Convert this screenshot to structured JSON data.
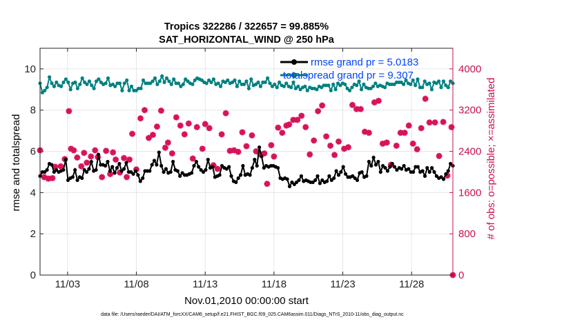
{
  "colors": {
    "rmse": "#000000",
    "spread": "#008080",
    "obs": "#d8135b",
    "legend_text": "#0044ff",
    "right_axis": "#c8104f"
  },
  "chart_data": {
    "type": "line",
    "title": [
      "Tropics 322286 / 322657 = 99.885%",
      "SAT_HORIZONTAL_WIND @ 250 hPa"
    ],
    "xlabel": "Nov.01,2010 00:00:00 start",
    "ylabel": "rmse and totalspread",
    "y2label": "# of obs: o=possible; ×=assimilated",
    "footnote": "data file: /Users/raeder/DAI/ATM_forcXX/CAM6_setup/f.e21.FHIST_BGC.f09_025.CAM6assim.011/Diags_NTrS_2010-11/obs_diag_output.nc",
    "xlim": [
      1.0,
      31.0
    ],
    "ylim": [
      0,
      11
    ],
    "y2lim": [
      0,
      4400
    ],
    "grid": true,
    "x_ticks": [
      3,
      8,
      13,
      18,
      23,
      28
    ],
    "x_tick_labels": [
      "11/03",
      "11/08",
      "11/13",
      "11/18",
      "11/23",
      "11/28"
    ],
    "y_ticks": [
      0,
      2,
      4,
      6,
      8,
      10
    ],
    "y_tick_labels": [
      "0",
      "2",
      "4",
      "6",
      "8",
      "10"
    ],
    "y2_ticks": [
      0,
      800,
      1600,
      2400,
      3200,
      4000
    ],
    "y2_tick_labels": [
      "0",
      "800",
      "1600",
      "2400",
      "3200",
      "4000"
    ],
    "series": [
      {
        "name": "rmse grand pr = 5.0183",
        "axis": "left",
        "values": [
          4.8,
          5.0,
          5.0,
          5.1,
          5.4,
          5.35,
          5.0,
          5.1,
          5.0,
          5.05,
          5.1,
          5.6,
          4.6,
          4.7,
          4.75,
          5.1,
          4.6,
          4.75,
          4.7,
          5.1,
          5.0,
          5.15,
          5.5,
          5.05,
          5.1,
          5.85,
          5.35,
          5.35,
          5.3,
          5.5,
          5.05,
          5.25,
          4.95,
          5.2,
          5.4,
          5.05,
          5.15,
          5.45,
          5.0,
          5.0,
          4.9,
          5.05,
          4.85,
          4.55,
          4.7,
          5.05,
          5.05,
          5.05,
          5.35,
          5.55,
          5.35,
          5.95,
          5.3,
          5.0,
          5.15,
          4.95,
          5.0,
          5.5,
          5.1,
          5.05,
          4.8,
          4.95,
          4.85,
          4.85,
          4.9,
          4.95,
          5.3,
          5.5,
          5.25,
          5.1,
          5.0,
          5.1,
          5.6,
          5.2,
          5.25,
          4.75,
          4.8,
          4.85,
          5.3,
          5.2,
          5.15,
          5.25,
          4.8,
          4.55,
          4.5,
          4.7,
          4.85,
          5.3,
          4.85,
          4.9,
          4.85,
          5.2,
          5.6,
          5.3,
          6.2,
          5.75,
          5.2,
          5.3,
          5.25,
          5.3,
          5.3,
          5.25,
          5.2,
          4.7,
          4.65,
          4.7,
          4.65,
          4.3,
          4.5,
          4.4,
          4.5,
          4.6,
          4.8,
          4.55,
          4.6,
          4.55,
          4.5,
          4.5,
          4.6,
          4.8,
          4.45,
          4.6,
          4.5,
          4.55,
          4.8,
          4.6,
          4.7,
          5.05,
          4.85,
          5.0,
          5.25,
          4.9,
          4.75,
          4.75,
          4.8,
          4.7,
          4.6,
          4.95,
          5.0,
          4.75,
          4.8,
          5.5,
          5.3,
          5.7,
          5.35,
          5.5,
          5.0,
          5.3,
          5.2,
          5.05,
          5.25,
          5.4,
          5.25,
          5.1,
          5.2,
          5.15,
          5.3,
          5.1,
          5.15,
          5.0,
          5.0,
          5.25,
          5.25,
          5.0,
          5.05,
          4.8,
          5.2,
          5.0,
          5.2,
          5.0,
          4.8,
          4.7,
          4.75,
          4.65,
          4.9,
          5.05,
          5.4,
          5.3
        ]
      },
      {
        "name": "totalspread grand pr = 9.307",
        "axis": "left",
        "values": [
          9.3,
          8.85,
          8.95,
          9.1,
          9.6,
          9.3,
          9.15,
          9.35,
          9.2,
          9.15,
          9.35,
          9.5,
          9.35,
          9.0,
          9.3,
          9.35,
          9.05,
          9.25,
          9.55,
          9.35,
          9.25,
          9.4,
          9.2,
          9.05,
          9.4,
          9.5,
          9.35,
          9.25,
          9.3,
          9.55,
          9.2,
          9.25,
          9.15,
          9.3,
          9.3,
          8.95,
          9.3,
          9.45,
          8.95,
          9.15,
          8.95,
          8.95,
          9.05,
          9.05,
          9.45,
          9.3,
          9.3,
          9.3,
          9.4,
          9.55,
          9.25,
          9.4,
          9.65,
          9.35,
          9.55,
          9.4,
          9.25,
          9.5,
          9.3,
          9.3,
          9.15,
          9.25,
          9.5,
          9.4,
          9.3,
          9.25,
          9.45,
          9.55,
          9.5,
          9.45,
          9.35,
          9.3,
          9.45,
          9.35,
          9.5,
          9.25,
          9.3,
          9.15,
          9.4,
          9.35,
          9.45,
          9.3,
          9.35,
          9.45,
          9.15,
          9.4,
          9.25,
          9.25,
          9.4,
          9.05,
          9.5,
          9.2,
          9.25,
          9.35,
          9.15,
          9.35,
          9.35,
          9.55,
          9.3,
          9.15,
          9.25,
          9.1,
          9.35,
          9.2,
          9.15,
          9.3,
          9.15,
          9.1,
          9.35,
          9.05,
          9.15,
          9.0,
          9.1,
          9.15,
          8.95,
          9.1,
          9.05,
          9.05,
          9.0,
          9.15,
          9.1,
          9.2,
          9.2,
          9.2,
          8.95,
          9.25,
          9.0,
          9.3,
          9.2,
          9.3,
          9.25,
          9.05,
          8.95,
          9.1,
          9.25,
          9.2,
          9.4,
          9.0,
          9.25,
          9.1,
          9.05,
          9.05,
          9.15,
          9.3,
          9.15,
          9.2,
          9.15,
          9.1,
          9.3,
          9.25,
          9.25,
          9.25,
          9.35,
          9.35,
          9.35,
          9.25,
          9.45,
          9.3,
          9.25,
          9.45,
          9.2,
          9.5,
          9.1,
          9.1,
          9.4,
          9.25,
          9.3,
          9.0,
          9.35,
          9.3,
          9.4,
          9.1,
          9.4,
          9.2,
          9.1,
          9.4,
          9.3
        ]
      }
    ],
    "obs_count": {
      "name": "# of obs",
      "axis": "right",
      "points": [
        [
          1.0,
          2420
        ],
        [
          1.3,
          1900
        ],
        [
          1.6,
          1870
        ],
        [
          1.9,
          1880
        ],
        [
          2.1,
          2100
        ],
        [
          2.5,
          2110
        ],
        [
          2.8,
          2250
        ],
        [
          3.1,
          3180
        ],
        [
          3.25,
          2450
        ],
        [
          3.45,
          2420
        ],
        [
          3.7,
          2280
        ],
        [
          4.0,
          2110
        ],
        [
          4.2,
          2370
        ],
        [
          4.4,
          2180
        ],
        [
          4.7,
          2300
        ],
        [
          5.0,
          2420
        ],
        [
          5.2,
          2290
        ],
        [
          5.5,
          1900
        ],
        [
          5.8,
          2410
        ],
        [
          6.1,
          1960
        ],
        [
          6.3,
          2380
        ],
        [
          6.5,
          2240
        ],
        [
          6.8,
          1990
        ],
        [
          7.1,
          2270
        ],
        [
          7.3,
          1900
        ],
        [
          7.5,
          2240
        ],
        [
          7.7,
          2740
        ],
        [
          8.0,
          2050
        ],
        [
          8.3,
          3040
        ],
        [
          8.6,
          3200
        ],
        [
          8.9,
          2660
        ],
        [
          9.2,
          2720
        ],
        [
          9.5,
          2880
        ],
        [
          9.8,
          3190
        ],
        [
          10.1,
          2470
        ],
        [
          10.3,
          2570
        ],
        [
          10.6,
          2360
        ],
        [
          10.9,
          3060
        ],
        [
          11.2,
          2900
        ],
        [
          11.5,
          2730
        ],
        [
          11.8,
          2940
        ],
        [
          12.1,
          2260
        ],
        [
          12.4,
          2870
        ],
        [
          12.8,
          2450
        ],
        [
          13.0,
          2930
        ],
        [
          13.3,
          2850
        ],
        [
          13.6,
          2130
        ],
        [
          13.9,
          2060
        ],
        [
          14.2,
          2730
        ],
        [
          14.5,
          3140
        ],
        [
          14.8,
          2410
        ],
        [
          15.1,
          2420
        ],
        [
          15.4,
          2390
        ],
        [
          15.7,
          2770
        ],
        [
          16.0,
          2500
        ],
        [
          16.4,
          2710
        ],
        [
          16.7,
          2400
        ],
        [
          17.0,
          2340
        ],
        [
          17.3,
          2360
        ],
        [
          17.5,
          1770
        ],
        [
          17.8,
          2520
        ],
        [
          18.0,
          2300
        ],
        [
          18.3,
          2860
        ],
        [
          18.6,
          2760
        ],
        [
          18.9,
          2900
        ],
        [
          19.1,
          2920
        ],
        [
          19.4,
          3010
        ],
        [
          19.7,
          3010
        ],
        [
          20.0,
          3090
        ],
        [
          20.3,
          2870
        ],
        [
          20.6,
          2340
        ],
        [
          20.9,
          2610
        ],
        [
          21.2,
          3180
        ],
        [
          21.5,
          3290
        ],
        [
          21.8,
          2690
        ],
        [
          22.1,
          2510
        ],
        [
          22.4,
          2330
        ],
        [
          22.7,
          2590
        ],
        [
          23.1,
          2450
        ],
        [
          23.4,
          2480
        ],
        [
          23.7,
          3300
        ],
        [
          24.0,
          3220
        ],
        [
          24.3,
          3220
        ],
        [
          24.6,
          2780
        ],
        [
          24.9,
          2760
        ],
        [
          25.3,
          3350
        ],
        [
          25.6,
          3380
        ],
        [
          25.9,
          2550
        ],
        [
          26.2,
          2570
        ],
        [
          26.5,
          2140
        ],
        [
          26.9,
          2510
        ],
        [
          27.2,
          2760
        ],
        [
          27.5,
          2760
        ],
        [
          27.8,
          2900
        ],
        [
          28.1,
          2550
        ],
        [
          28.4,
          2440
        ],
        [
          28.7,
          2850
        ],
        [
          29.0,
          3420
        ],
        [
          29.3,
          2960
        ],
        [
          29.7,
          2960
        ],
        [
          30.0,
          2310
        ],
        [
          30.3,
          2970
        ],
        [
          30.6,
          1930
        ],
        [
          30.9,
          2870
        ],
        [
          31.0,
          0
        ]
      ]
    },
    "legend_position": "top-right"
  }
}
